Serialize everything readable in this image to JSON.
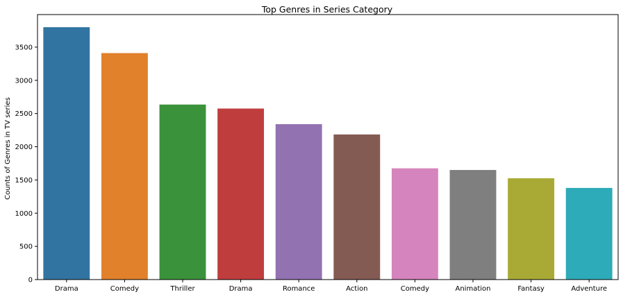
{
  "chart_data": {
    "type": "bar",
    "title": "Top Genres in Series Category",
    "xlabel": "",
    "ylabel": "Counts of Genres in TV series",
    "categories": [
      "Drama",
      "Comedy",
      "Thriller",
      "Drama",
      "Romance",
      "Action",
      "Comedy",
      "Animation",
      "Fantasy",
      "Adventure"
    ],
    "values": [
      3800,
      3410,
      2635,
      2575,
      2340,
      2185,
      1675,
      1650,
      1525,
      1380
    ],
    "colors": [
      "#3274a1",
      "#e1812c",
      "#3a923a",
      "#c03d3e",
      "#9372b2",
      "#845b53",
      "#d684bd",
      "#7f7f7f",
      "#a9aa35",
      "#2eabb8"
    ],
    "ylim": [
      0,
      3990
    ],
    "yticks": [
      0,
      500,
      1000,
      1500,
      2000,
      2500,
      3000,
      3500
    ],
    "grid": false,
    "legend": "none"
  }
}
